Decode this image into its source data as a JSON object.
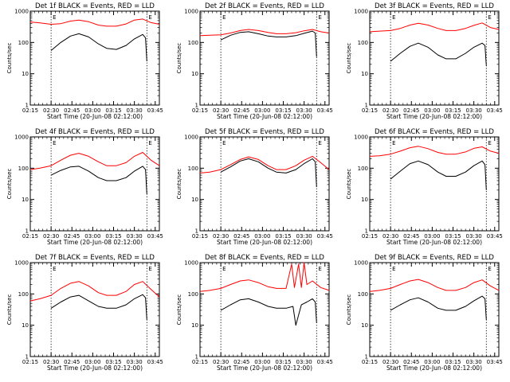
{
  "colors": {
    "events": "#000000",
    "lld": "#ff0000",
    "background": "#ffffff"
  },
  "panel_common": {
    "ylabel": "Counts/sec",
    "xlabel": "Start Time (20-Jun-08 02:12:00)",
    "x_ticks": [
      "02:15",
      "02:30",
      "02:45",
      "03:00",
      "03:15",
      "03:30",
      "03:45"
    ],
    "y_ticks": [
      "1",
      "10",
      "100",
      "1000"
    ],
    "marker": "E"
  },
  "chart_data": [
    {
      "type": "line",
      "title": "Det 1f BLACK = Events, RED = LLD",
      "xlabel": "Start Time (20-Jun-08 02:12:00)",
      "ylabel": "Counts/sec",
      "scale_y": "log",
      "ylim": [
        1,
        1000
      ],
      "xlim_min": [
        3,
        96
      ],
      "eclipse_min": [
        18,
        87
      ],
      "series": [
        {
          "name": "Events",
          "color": "#000000",
          "x": [
            18,
            25,
            32,
            38,
            45,
            52,
            58,
            65,
            72,
            78,
            84,
            86,
            87
          ],
          "y": [
            55,
            100,
            160,
            190,
            150,
            90,
            65,
            60,
            80,
            130,
            180,
            140,
            25
          ]
        },
        {
          "name": "LLD",
          "color": "#ff0000",
          "x": [
            3,
            10,
            18,
            25,
            32,
            38,
            45,
            52,
            58,
            65,
            72,
            78,
            84,
            90,
            96
          ],
          "y": [
            450,
            420,
            380,
            400,
            480,
            520,
            460,
            360,
            330,
            330,
            390,
            520,
            560,
            430,
            380
          ]
        }
      ]
    },
    {
      "type": "line",
      "title": "Det 2f BLACK = Events, RED = LLD",
      "xlabel": "Start Time (20-Jun-08 02:12:00)",
      "ylabel": "Counts/sec",
      "scale_y": "log",
      "ylim": [
        1,
        1000
      ],
      "xlim_min": [
        3,
        96
      ],
      "eclipse_min": [
        18,
        87
      ],
      "series": [
        {
          "name": "Events",
          "color": "#000000",
          "x": [
            18,
            25,
            32,
            38,
            45,
            52,
            58,
            65,
            72,
            78,
            84,
            86,
            87
          ],
          "y": [
            120,
            170,
            210,
            220,
            190,
            160,
            150,
            150,
            165,
            195,
            230,
            200,
            35
          ]
        },
        {
          "name": "LLD",
          "color": "#ff0000",
          "x": [
            3,
            10,
            18,
            25,
            32,
            38,
            45,
            52,
            58,
            65,
            72,
            78,
            84,
            90,
            96
          ],
          "y": [
            165,
            170,
            175,
            200,
            240,
            260,
            240,
            210,
            190,
            190,
            205,
            235,
            260,
            220,
            200
          ]
        }
      ]
    },
    {
      "type": "line",
      "title": "Det 3f BLACK = Events, RED = LLD",
      "xlabel": "Start Time (20-Jun-08 02:12:00)",
      "ylabel": "Counts/sec",
      "scale_y": "log",
      "ylim": [
        1,
        1000
      ],
      "xlim_min": [
        3,
        96
      ],
      "eclipse_min": [
        18,
        87
      ],
      "series": [
        {
          "name": "Events",
          "color": "#000000",
          "x": [
            18,
            25,
            32,
            38,
            45,
            52,
            58,
            65,
            72,
            78,
            84,
            86,
            87
          ],
          "y": [
            25,
            45,
            75,
            95,
            70,
            40,
            30,
            30,
            45,
            70,
            95,
            80,
            18
          ]
        },
        {
          "name": "LLD",
          "color": "#ff0000",
          "x": [
            3,
            10,
            18,
            25,
            32,
            38,
            45,
            52,
            58,
            65,
            72,
            78,
            84,
            90,
            96
          ],
          "y": [
            220,
            230,
            240,
            280,
            360,
            410,
            360,
            280,
            240,
            240,
            280,
            350,
            420,
            300,
            260
          ]
        }
      ]
    },
    {
      "type": "line",
      "title": "Det 4f BLACK = Events, RED = LLD",
      "xlabel": "Start Time (20-Jun-08 02:12:00)",
      "ylabel": "Counts/sec",
      "scale_y": "log",
      "ylim": [
        1,
        1000
      ],
      "xlim_min": [
        3,
        96
      ],
      "eclipse_min": [
        18,
        87
      ],
      "series": [
        {
          "name": "Events",
          "color": "#000000",
          "x": [
            18,
            25,
            32,
            38,
            45,
            52,
            58,
            65,
            72,
            78,
            84,
            86,
            87
          ],
          "y": [
            60,
            85,
            110,
            115,
            80,
            50,
            40,
            40,
            50,
            80,
            115,
            90,
            15
          ]
        },
        {
          "name": "LLD",
          "color": "#ff0000",
          "x": [
            3,
            10,
            18,
            25,
            32,
            38,
            45,
            52,
            58,
            65,
            72,
            78,
            84,
            90,
            96
          ],
          "y": [
            90,
            100,
            120,
            180,
            260,
            300,
            240,
            160,
            120,
            120,
            150,
            240,
            320,
            180,
            120
          ]
        }
      ]
    },
    {
      "type": "line",
      "title": "Det 5f BLACK = Events, RED = LLD",
      "xlabel": "Start Time (20-Jun-08 02:12:00)",
      "ylabel": "Counts/sec",
      "scale_y": "log",
      "ylim": [
        1,
        1000
      ],
      "xlim_min": [
        3,
        96
      ],
      "eclipse_min": [
        18,
        87
      ],
      "series": [
        {
          "name": "Events",
          "color": "#000000",
          "x": [
            18,
            25,
            32,
            38,
            45,
            52,
            58,
            65,
            72,
            78,
            84,
            86,
            87
          ],
          "y": [
            75,
            110,
            170,
            200,
            160,
            100,
            75,
            70,
            90,
            140,
            200,
            160,
            25
          ]
        },
        {
          "name": "LLD",
          "color": "#ff0000",
          "x": [
            3,
            10,
            18,
            25,
            32,
            38,
            45,
            52,
            58,
            65,
            72,
            78,
            84,
            90,
            96
          ],
          "y": [
            70,
            75,
            90,
            130,
            190,
            230,
            190,
            120,
            90,
            90,
            120,
            180,
            240,
            150,
            90
          ]
        }
      ]
    },
    {
      "type": "line",
      "title": "Det 6f BLACK = Events, RED = LLD",
      "xlabel": "Start Time (20-Jun-08 02:12:00)",
      "ylabel": "Counts/sec",
      "scale_y": "log",
      "ylim": [
        1,
        1000
      ],
      "xlim_min": [
        3,
        96
      ],
      "eclipse_min": [
        18,
        87
      ],
      "series": [
        {
          "name": "Events",
          "color": "#000000",
          "x": [
            18,
            25,
            32,
            38,
            45,
            52,
            58,
            65,
            72,
            78,
            84,
            86,
            87
          ],
          "y": [
            45,
            80,
            140,
            170,
            130,
            75,
            55,
            55,
            75,
            120,
            170,
            130,
            20
          ]
        },
        {
          "name": "LLD",
          "color": "#ff0000",
          "x": [
            3,
            10,
            18,
            25,
            32,
            38,
            45,
            52,
            58,
            65,
            72,
            78,
            84,
            90,
            96
          ],
          "y": [
            240,
            250,
            280,
            350,
            450,
            500,
            420,
            320,
            280,
            280,
            330,
            430,
            480,
            350,
            300
          ]
        }
      ]
    },
    {
      "type": "line",
      "title": "Det 7f BLACK = Events, RED = LLD",
      "xlabel": "Start Time (20-Jun-08 02:12:00)",
      "ylabel": "Counts/sec",
      "scale_y": "log",
      "ylim": [
        1,
        1000
      ],
      "xlim_min": [
        3,
        96
      ],
      "eclipse_min": [
        18,
        87
      ],
      "series": [
        {
          "name": "Events",
          "color": "#000000",
          "x": [
            18,
            25,
            32,
            38,
            45,
            52,
            58,
            65,
            72,
            78,
            84,
            86,
            87
          ],
          "y": [
            35,
            55,
            80,
            90,
            60,
            40,
            35,
            35,
            45,
            70,
            95,
            75,
            15
          ]
        },
        {
          "name": "LLD",
          "color": "#ff0000",
          "x": [
            3,
            10,
            18,
            25,
            32,
            38,
            45,
            52,
            58,
            65,
            72,
            78,
            84,
            90,
            96
          ],
          "y": [
            60,
            70,
            90,
            150,
            220,
            250,
            180,
            110,
            90,
            90,
            120,
            200,
            250,
            140,
            80
          ]
        }
      ]
    },
    {
      "type": "line",
      "title": "Det 8f BLACK = Events, RED = LLD",
      "xlabel": "Start Time (20-Jun-08 02:12:00)",
      "ylabel": "Counts/sec",
      "scale_y": "log",
      "ylim": [
        1,
        1000
      ],
      "xlim_min": [
        3,
        96
      ],
      "eclipse_min": [
        18,
        87
      ],
      "series": [
        {
          "name": "Events",
          "color": "#000000",
          "x": [
            18,
            25,
            32,
            38,
            45,
            52,
            58,
            65,
            70,
            72,
            76,
            80,
            84,
            86,
            87
          ],
          "y": [
            30,
            45,
            65,
            70,
            55,
            40,
            35,
            35,
            40,
            10,
            45,
            55,
            70,
            55,
            12
          ]
        },
        {
          "name": "LLD",
          "color": "#ff0000",
          "x": [
            3,
            10,
            18,
            25,
            32,
            38,
            45,
            52,
            58,
            65,
            69,
            71,
            74,
            76,
            78,
            80,
            84,
            90,
            96
          ],
          "y": [
            120,
            130,
            150,
            200,
            260,
            280,
            230,
            170,
            150,
            150,
            900,
            160,
            900,
            160,
            1000,
            200,
            260,
            160,
            130
          ]
        }
      ]
    },
    {
      "type": "line",
      "title": "Det 9f BLACK = Events, RED = LLD",
      "xlabel": "Start Time (20-Jun-08 02:12:00)",
      "ylabel": "Counts/sec",
      "scale_y": "log",
      "ylim": [
        1,
        1000
      ],
      "xlim_min": [
        3,
        96
      ],
      "eclipse_min": [
        18,
        87
      ],
      "series": [
        {
          "name": "Events",
          "color": "#000000",
          "x": [
            18,
            25,
            32,
            38,
            45,
            52,
            58,
            65,
            72,
            78,
            84,
            86,
            87
          ],
          "y": [
            30,
            45,
            65,
            75,
            55,
            35,
            30,
            30,
            40,
            60,
            85,
            70,
            15
          ]
        },
        {
          "name": "LLD",
          "color": "#ff0000",
          "x": [
            3,
            10,
            18,
            25,
            32,
            38,
            45,
            52,
            58,
            65,
            72,
            78,
            84,
            90,
            96
          ],
          "y": [
            120,
            130,
            150,
            200,
            260,
            290,
            230,
            160,
            130,
            130,
            160,
            230,
            280,
            180,
            130
          ]
        }
      ]
    }
  ]
}
